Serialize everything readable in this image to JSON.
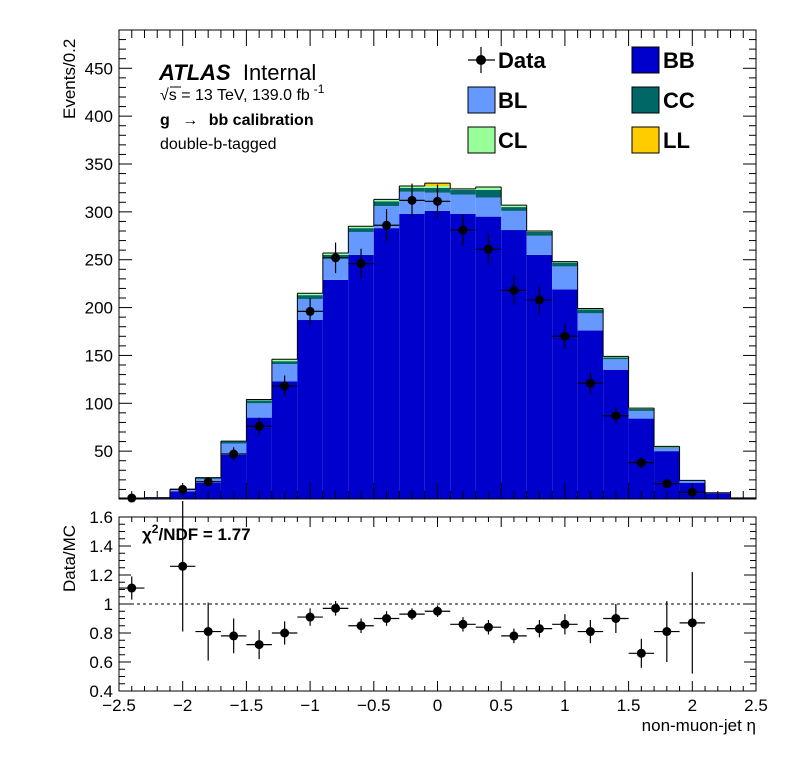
{
  "chart_data": {
    "type": "histogram",
    "bin_edges": [
      -2.5,
      -2.3,
      -2.1,
      -1.9,
      -1.7,
      -1.5,
      -1.3,
      -1.1,
      -0.9,
      -0.7,
      -0.5,
      -0.3,
      -0.1,
      0.1,
      0.3,
      0.5,
      0.7,
      0.9,
      1.1,
      1.3,
      1.5,
      1.7,
      1.9,
      2.1,
      2.3,
      2.5
    ],
    "stack_order": [
      "BB",
      "BL",
      "CC",
      "CL",
      "LL"
    ],
    "series": [
      {
        "name": "BB",
        "color": "#0000cc",
        "values": [
          0,
          1,
          8,
          17,
          46,
          85,
          123,
          187,
          229,
          255,
          283,
          298,
          301,
          298,
          295,
          281,
          255,
          219,
          176,
          135,
          84,
          50,
          17,
          6,
          1
        ]
      },
      {
        "name": "BL",
        "color": "#6699ff",
        "values": [
          0.3,
          0.5,
          2,
          4,
          12,
          15,
          18,
          22,
          22,
          24,
          23,
          23,
          19,
          20,
          20,
          20,
          20,
          24,
          18,
          11,
          8,
          3,
          2,
          0.5,
          0.2
        ]
      },
      {
        "name": "CC",
        "color": "#006666",
        "values": [
          0,
          0,
          0.3,
          1,
          2,
          3,
          3,
          4,
          4,
          4,
          5,
          4,
          5,
          5,
          8,
          4,
          4,
          4,
          4,
          2,
          2,
          1,
          0.5,
          0,
          0
        ]
      },
      {
        "name": "CL",
        "color": "#99ff99",
        "values": [
          0,
          0,
          0,
          0.3,
          0.5,
          1,
          2,
          2,
          2,
          2,
          2,
          2,
          2,
          1,
          3,
          2,
          1,
          1,
          1,
          1,
          1,
          1,
          0,
          0,
          0
        ]
      },
      {
        "name": "LL",
        "color": "#ffcc00",
        "values": [
          0,
          0,
          0,
          0,
          0,
          0,
          0,
          0,
          0,
          0,
          0,
          0,
          3,
          0,
          0,
          0,
          0,
          0,
          0,
          0,
          0,
          0,
          0,
          0,
          0
        ]
      }
    ],
    "data": {
      "name": "Data",
      "x": [
        -2.4,
        -2.0,
        -1.8,
        -1.6,
        -1.4,
        -1.2,
        -1.0,
        -0.8,
        -0.6,
        -0.4,
        -0.2,
        0.0,
        0.2,
        0.4,
        0.6,
        0.8,
        1.0,
        1.2,
        1.4,
        1.6,
        1.8,
        2.0
      ],
      "y": [
        1,
        10,
        18,
        47,
        76,
        118,
        196,
        252,
        246,
        286,
        312,
        311,
        281,
        261,
        218,
        208,
        170,
        121,
        87,
        38,
        16,
        7
      ],
      "yerr": [
        1,
        3,
        4.5,
        7,
        9,
        11,
        14,
        16,
        15.5,
        17,
        17.5,
        17.5,
        16.5,
        16,
        15,
        14.5,
        13,
        11,
        9,
        6,
        4,
        2.7
      ]
    },
    "ratio": {
      "ylabel": "Data/MC",
      "ylim": [
        0.4,
        1.6
      ],
      "yticks": [
        0.4,
        0.6,
        0.8,
        1,
        1.2,
        1.4,
        1.6
      ],
      "x": [
        -2.4,
        -2.0,
        -1.8,
        -1.6,
        -1.4,
        -1.2,
        -1.0,
        -0.8,
        -0.6,
        -0.4,
        -0.2,
        0.0,
        0.2,
        0.4,
        0.6,
        0.8,
        1.0,
        1.2,
        1.4,
        1.6,
        1.8,
        2.0
      ],
      "y": [
        1.11,
        1.26,
        0.81,
        0.78,
        0.72,
        0.8,
        0.91,
        0.97,
        0.85,
        0.9,
        0.93,
        0.95,
        0.86,
        0.84,
        0.78,
        0.83,
        0.86,
        0.81,
        0.9,
        0.66,
        0.81,
        0.87
      ],
      "yerr": [
        0.08,
        0.45,
        0.2,
        0.12,
        0.1,
        0.08,
        0.06,
        0.05,
        0.05,
        0.05,
        0.04,
        0.04,
        0.05,
        0.05,
        0.05,
        0.06,
        0.07,
        0.08,
        0.1,
        0.1,
        0.21,
        0.35
      ],
      "reference_line": 1,
      "annotation": "NDF = 1.77",
      "annotation_prefix": "χ",
      "annotation_sup": "2"
    },
    "xlabel": "non-muon-jet η",
    "ylabel": "Events/0.2",
    "xlim": [
      -2.5,
      2.5
    ],
    "ylim": [
      0,
      490
    ],
    "yticks": [
      50,
      100,
      150,
      200,
      250,
      300,
      350,
      400,
      450
    ],
    "xticks": [
      -2.5,
      -2,
      -1.5,
      -1,
      -0.5,
      0,
      0.5,
      1,
      1.5,
      2,
      2.5
    ],
    "xtick_labels": [
      "−2.5",
      "−2",
      "−1.5",
      "−1",
      "−0.5",
      "0",
      "0.5",
      "1",
      "1.5",
      "2",
      "2.5"
    ],
    "legend": {
      "placement": "top-right",
      "entries": [
        "Data",
        "BB",
        "BL",
        "CC",
        "CL",
        "LL"
      ]
    },
    "annotations": {
      "atlas": "ATLAS",
      "atlas_status": "Internal",
      "energy_root": "√",
      "energy": "s = 13 TeV, 139.0 fb",
      "energy_sup": "-1",
      "selection_g": "g",
      "selection_arrow": "→",
      "selection_rest": "bb calibration",
      "tagging": "double-b-tagged"
    }
  }
}
